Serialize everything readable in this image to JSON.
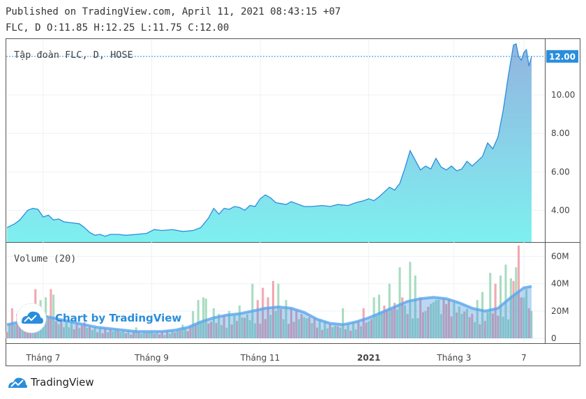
{
  "header": {
    "published": "Published on TradingView.com, April 11, 2021 08:43:15 +07",
    "ohlc": "FLC, D O:11.85 H:12.25 L:11.75 C:12.00"
  },
  "colors": {
    "line": "#2a8ddc",
    "area_top": "#93b4e0",
    "area_bottom": "#7ef0f0",
    "vol_up": "#a8dcc0",
    "vol_down": "#f2a8b0",
    "vol_ma": "#3a8ee0",
    "price_tag": "#2a8ddc"
  },
  "watermark": {
    "text": "Chart by TradingView"
  },
  "footer": {
    "brand": "TradingView"
  },
  "chart_data": [
    {
      "type": "area",
      "title": "Tập đoàn FLC, D, HOSE",
      "last_price_label": "12.00",
      "ylim": [
        2.35,
        12.9
      ],
      "yticks": [
        "4.00",
        "6.00",
        "8.00",
        "10.00"
      ],
      "yticks_values": [
        4,
        6,
        8,
        10
      ],
      "x_labels": [
        {
          "label": "Tháng 7",
          "x": 14,
          "bold": false
        },
        {
          "label": "Tháng 9",
          "x": 56,
          "bold": false
        },
        {
          "label": "Tháng 11",
          "x": 98,
          "bold": false
        },
        {
          "label": "2021",
          "x": 140,
          "bold": true
        },
        {
          "label": "Tháng 3",
          "x": 173,
          "bold": false
        },
        {
          "label": "7",
          "x": 200,
          "bold": false
        }
      ],
      "x_range": [
        0,
        203
      ],
      "series": [
        {
          "values": [
            [
              0,
              3.1
            ],
            [
              3,
              3.3
            ],
            [
              5,
              3.5
            ],
            [
              8,
              4.0
            ],
            [
              10,
              4.1
            ],
            [
              12,
              4.05
            ],
            [
              14,
              3.65
            ],
            [
              16,
              3.75
            ],
            [
              18,
              3.5
            ],
            [
              20,
              3.55
            ],
            [
              22,
              3.4
            ],
            [
              25,
              3.35
            ],
            [
              28,
              3.3
            ],
            [
              30,
              3.1
            ],
            [
              32,
              2.85
            ],
            [
              34,
              2.7
            ],
            [
              36,
              2.75
            ],
            [
              38,
              2.65
            ],
            [
              40,
              2.75
            ],
            [
              43,
              2.75
            ],
            [
              46,
              2.7
            ],
            [
              50,
              2.75
            ],
            [
              54,
              2.8
            ],
            [
              57,
              3.0
            ],
            [
              60,
              2.95
            ],
            [
              64,
              3.0
            ],
            [
              68,
              2.9
            ],
            [
              72,
              2.95
            ],
            [
              75,
              3.1
            ],
            [
              78,
              3.6
            ],
            [
              80,
              4.1
            ],
            [
              82,
              3.8
            ],
            [
              84,
              4.1
            ],
            [
              86,
              4.05
            ],
            [
              88,
              4.2
            ],
            [
              90,
              4.15
            ],
            [
              92,
              4.0
            ],
            [
              94,
              4.25
            ],
            [
              96,
              4.2
            ],
            [
              98,
              4.6
            ],
            [
              100,
              4.8
            ],
            [
              102,
              4.65
            ],
            [
              104,
              4.4
            ],
            [
              106,
              4.35
            ],
            [
              108,
              4.3
            ],
            [
              110,
              4.45
            ],
            [
              112,
              4.35
            ],
            [
              115,
              4.2
            ],
            [
              118,
              4.2
            ],
            [
              122,
              4.25
            ],
            [
              125,
              4.2
            ],
            [
              128,
              4.3
            ],
            [
              132,
              4.25
            ],
            [
              135,
              4.4
            ],
            [
              138,
              4.5
            ],
            [
              140,
              4.6
            ],
            [
              142,
              4.5
            ],
            [
              144,
              4.7
            ],
            [
              146,
              4.95
            ],
            [
              148,
              5.2
            ],
            [
              150,
              5.05
            ],
            [
              152,
              5.4
            ],
            [
              154,
              6.2
            ],
            [
              156,
              7.1
            ],
            [
              158,
              6.6
            ],
            [
              160,
              6.1
            ],
            [
              162,
              6.3
            ],
            [
              164,
              6.15
            ],
            [
              166,
              6.7
            ],
            [
              168,
              6.25
            ],
            [
              170,
              6.1
            ],
            [
              172,
              6.3
            ],
            [
              174,
              6.05
            ],
            [
              176,
              6.15
            ],
            [
              178,
              6.55
            ],
            [
              180,
              6.3
            ],
            [
              182,
              6.55
            ],
            [
              184,
              6.8
            ],
            [
              186,
              7.5
            ],
            [
              188,
              7.2
            ],
            [
              190,
              7.8
            ],
            [
              192,
              9.2
            ],
            [
              194,
              11.0
            ],
            [
              196,
              12.6
            ],
            [
              197,
              12.65
            ],
            [
              198,
              12.0
            ],
            [
              199,
              11.8
            ],
            [
              200,
              12.2
            ],
            [
              201,
              12.35
            ],
            [
              202,
              11.5
            ],
            [
              203,
              12.0
            ]
          ]
        }
      ]
    },
    {
      "type": "bar",
      "title": "Volume (20)",
      "ylim": [
        0,
        70
      ],
      "yticks": [
        "0",
        "20M",
        "40M",
        "60M"
      ],
      "yticks_values": [
        0,
        20,
        40,
        60
      ],
      "volume_up_ticks_note": "",
      "spikes": [
        [
          2,
          22,
          "d"
        ],
        [
          3,
          10,
          "u"
        ],
        [
          4,
          18,
          "d"
        ],
        [
          9,
          24,
          "d"
        ],
        [
          10,
          20,
          "u"
        ],
        [
          11,
          36,
          "d"
        ],
        [
          13,
          28,
          "u"
        ],
        [
          15,
          30,
          "u"
        ],
        [
          17,
          36,
          "d"
        ],
        [
          18,
          32,
          "u"
        ],
        [
          24,
          8,
          "u"
        ],
        [
          30,
          12,
          "d"
        ],
        [
          50,
          8,
          "u"
        ],
        [
          68,
          10,
          "u"
        ],
        [
          72,
          20,
          "u"
        ],
        [
          74,
          28,
          "u"
        ],
        [
          76,
          30,
          "u"
        ],
        [
          77,
          29,
          "u"
        ],
        [
          80,
          22,
          "u"
        ],
        [
          82,
          18,
          "u"
        ],
        [
          86,
          20,
          "u"
        ],
        [
          90,
          24,
          "u"
        ],
        [
          95,
          40,
          "u"
        ],
        [
          97,
          28,
          "d"
        ],
        [
          99,
          37,
          "d"
        ],
        [
          101,
          30,
          "d"
        ],
        [
          103,
          42,
          "d"
        ],
        [
          105,
          40,
          "u"
        ],
        [
          108,
          28,
          "u"
        ],
        [
          110,
          22,
          "d"
        ],
        [
          130,
          22,
          "u"
        ],
        [
          138,
          22,
          "d"
        ],
        [
          142,
          30,
          "u"
        ],
        [
          144,
          32,
          "u"
        ],
        [
          146,
          24,
          "d"
        ],
        [
          148,
          40,
          "u"
        ],
        [
          150,
          26,
          "d"
        ],
        [
          152,
          52,
          "u"
        ],
        [
          153,
          30,
          "d"
        ],
        [
          156,
          56,
          "u"
        ],
        [
          158,
          46,
          "u"
        ],
        [
          160,
          30,
          "d"
        ],
        [
          162,
          20,
          "u"
        ],
        [
          166,
          28,
          "u"
        ],
        [
          170,
          25,
          "d"
        ],
        [
          176,
          18,
          "u"
        ],
        [
          180,
          18,
          "d"
        ],
        [
          182,
          28,
          "u"
        ],
        [
          184,
          34,
          "u"
        ],
        [
          187,
          48,
          "u"
        ],
        [
          189,
          40,
          "d"
        ],
        [
          191,
          46,
          "u"
        ],
        [
          193,
          54,
          "u"
        ],
        [
          195,
          44,
          "u"
        ],
        [
          196,
          42,
          "d"
        ],
        [
          197,
          52,
          "u"
        ],
        [
          198,
          68,
          "d"
        ],
        [
          199,
          30,
          "d"
        ],
        [
          201,
          36,
          "u"
        ],
        [
          202,
          22,
          "d"
        ],
        [
          203,
          20,
          "u"
        ]
      ],
      "moving_average": [
        [
          0,
          10
        ],
        [
          5,
          12
        ],
        [
          10,
          15
        ],
        [
          15,
          16
        ],
        [
          20,
          14
        ],
        [
          25,
          12
        ],
        [
          30,
          10
        ],
        [
          35,
          8
        ],
        [
          40,
          7
        ],
        [
          45,
          6
        ],
        [
          50,
          5
        ],
        [
          55,
          5
        ],
        [
          60,
          5
        ],
        [
          65,
          6
        ],
        [
          70,
          8
        ],
        [
          75,
          12
        ],
        [
          80,
          15
        ],
        [
          85,
          17
        ],
        [
          90,
          18
        ],
        [
          95,
          20
        ],
        [
          100,
          22
        ],
        [
          105,
          23
        ],
        [
          110,
          22
        ],
        [
          115,
          19
        ],
        [
          120,
          14
        ],
        [
          125,
          11
        ],
        [
          130,
          10
        ],
        [
          135,
          12
        ],
        [
          140,
          15
        ],
        [
          145,
          19
        ],
        [
          150,
          23
        ],
        [
          155,
          27
        ],
        [
          160,
          29
        ],
        [
          165,
          30
        ],
        [
          170,
          29
        ],
        [
          175,
          26
        ],
        [
          180,
          22
        ],
        [
          185,
          20
        ],
        [
          190,
          22
        ],
        [
          195,
          30
        ],
        [
          200,
          37
        ],
        [
          203,
          38
        ]
      ]
    }
  ]
}
